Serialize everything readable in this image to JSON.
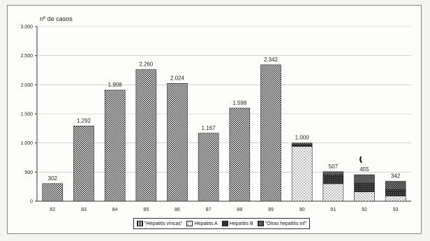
{
  "chart_data": {
    "type": "bar",
    "ylabel": "nº de casos",
    "ylim": [
      0,
      3000
    ],
    "yticks": [
      0,
      500,
      1000,
      1500,
      2000,
      2500,
      3000
    ],
    "ytick_labels": [
      "0",
      "500",
      "1.000",
      "1.500",
      "2.000",
      "2.500",
      "3.000"
    ],
    "categories": [
      "82",
      "83",
      "84",
      "85",
      "86",
      "87",
      "88",
      "89",
      "90",
      "91",
      "92",
      "93"
    ],
    "series": [
      {
        "name": "\"Hepatitis víricas\"",
        "pattern": "checker",
        "values": [
          302,
          1292,
          1908,
          2260,
          2024,
          1167,
          1598,
          2342,
          0,
          0,
          0,
          0
        ]
      },
      {
        "name": "Hepatitis A",
        "pattern": "dots",
        "values": [
          0,
          0,
          0,
          0,
          0,
          0,
          0,
          0,
          940,
          300,
          160,
          90
        ]
      },
      {
        "name": "Hepatitis B",
        "pattern": "dark",
        "values": [
          0,
          0,
          0,
          0,
          0,
          0,
          0,
          0,
          30,
          150,
          150,
          110
        ]
      },
      {
        "name": "\"Otras hepatitis inf\"",
        "pattern": "check-dark",
        "values": [
          0,
          0,
          0,
          0,
          0,
          0,
          0,
          0,
          30,
          57,
          145,
          142
        ]
      }
    ],
    "bar_labels": [
      "302",
      "1.292",
      "1.908",
      "2.260",
      "2.024",
      "1.167",
      "1.598",
      "2.342",
      "1.000",
      "507",
      "455",
      "342"
    ],
    "colors": {
      "ink": "#2a2a2a",
      "paper": "#ffffff",
      "grid": "#bdbdbd"
    }
  }
}
